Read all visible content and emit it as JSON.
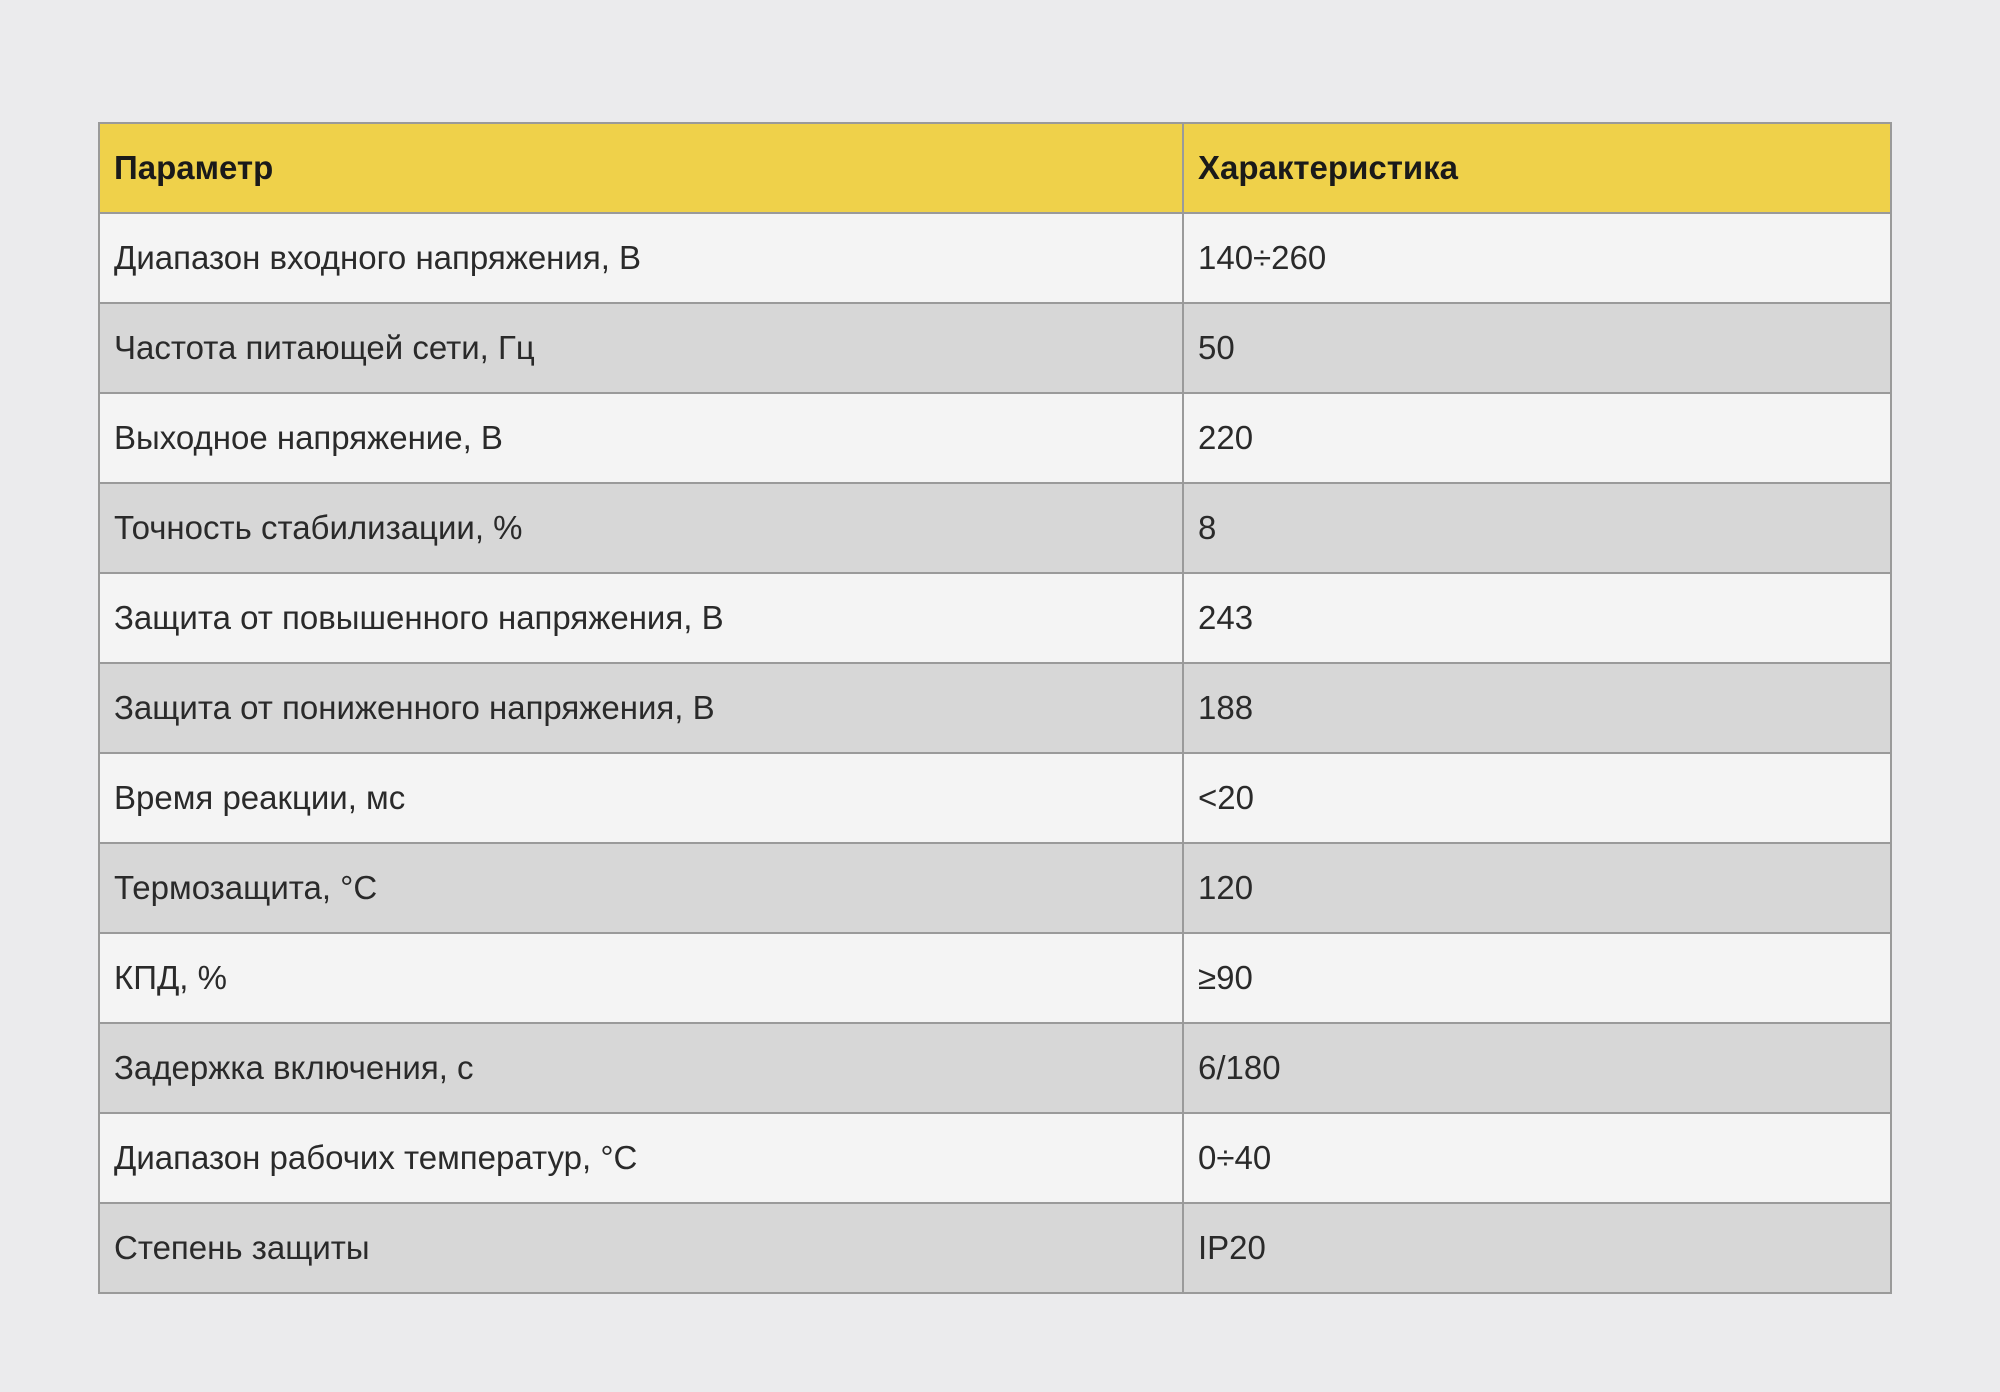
{
  "table": {
    "headers": [
      "Параметр",
      "Характеристика"
    ],
    "header_color": "#efd14a",
    "rows": [
      [
        "Диапазон входного напряжения, В",
        "140÷260"
      ],
      [
        "Частота питающей сети, Гц",
        "50"
      ],
      [
        "Выходное напряжение, В",
        "220"
      ],
      [
        "Точность стабилизации, %",
        "8"
      ],
      [
        "Защита от повышенного напряжения, В",
        "243"
      ],
      [
        "Защита от пониженного напряжения, В",
        "188"
      ],
      [
        "Время реакции, мс",
        "<20"
      ],
      [
        "Термозащита, °С",
        "120"
      ],
      [
        "КПД, %",
        "≥90"
      ],
      [
        "Задержка включения, с",
        "6/180"
      ],
      [
        "Диапазон рабочих температур, °С",
        "0÷40"
      ],
      [
        "Степень защиты",
        "IP20"
      ]
    ]
  }
}
